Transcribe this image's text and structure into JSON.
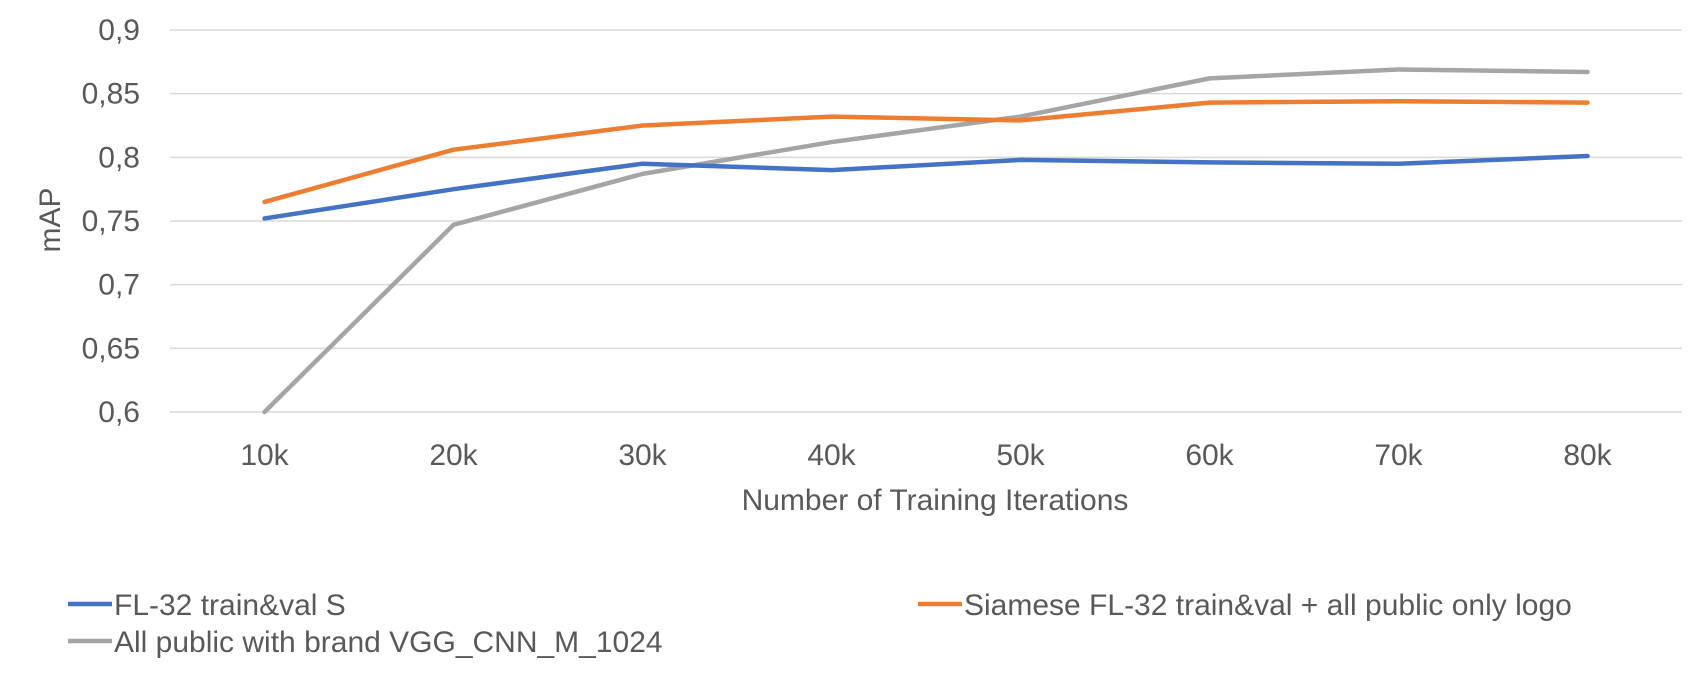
{
  "chart_data": {
    "type": "line",
    "title": "",
    "xlabel": "Number of Training Iterations",
    "ylabel": "mAP",
    "categories": [
      "10k",
      "20k",
      "30k",
      "40k",
      "50k",
      "60k",
      "70k",
      "80k"
    ],
    "ylim": [
      0.6,
      0.9
    ],
    "yticks": [
      "0,6",
      "0,65",
      "0,7",
      "0,75",
      "0,8",
      "0,85",
      "0,9"
    ],
    "ytick_values": [
      0.6,
      0.65,
      0.7,
      0.75,
      0.8,
      0.85,
      0.9
    ],
    "grid": true,
    "legend_position": "bottom",
    "series": [
      {
        "name": "FL-32 train&val S",
        "color": "#4472c4",
        "values": [
          0.752,
          0.775,
          0.795,
          0.79,
          0.798,
          0.796,
          0.795,
          0.801
        ]
      },
      {
        "name": "Siamese FL-32 train&val + all public only logo",
        "color": "#ed7d31",
        "values": [
          0.765,
          0.806,
          0.825,
          0.832,
          0.829,
          0.843,
          0.844,
          0.843
        ]
      },
      {
        "name": "All public with brand VGG_CNN_M_1024",
        "color": "#a5a5a5",
        "values": [
          0.6,
          0.747,
          0.787,
          0.812,
          0.832,
          0.862,
          0.869,
          0.867
        ]
      }
    ]
  }
}
